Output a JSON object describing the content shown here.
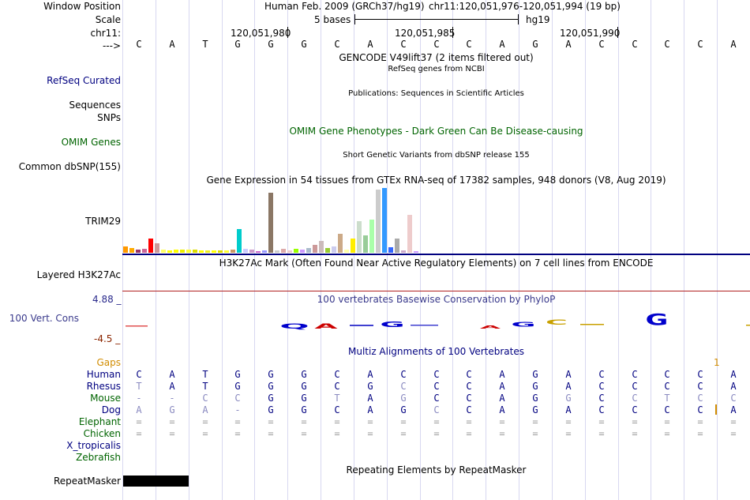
{
  "header": {
    "window_position_label": "Window Position",
    "assembly": "Human Feb. 2009 (GRCh37/hg19)",
    "position": "chr11:120,051,976-120,051,994 (19 bp)",
    "scale_label": "Scale",
    "scale_text": "5 bases",
    "scale_db": "hg19",
    "chrom_label": "chr11:",
    "ticks": [
      "120,051,980",
      "120,051,985",
      "120,051,990"
    ],
    "strand_label": "--->"
  },
  "sequence": [
    "C",
    "A",
    "T",
    "G",
    "G",
    "G",
    "C",
    "A",
    "C",
    "C",
    "C",
    "A",
    "G",
    "A",
    "C",
    "C",
    "C",
    "C",
    "A"
  ],
  "tracks": {
    "gencode": "GENCODE V49lift37 (2 items filtered out)",
    "refseq_label": "RefSeq Curated",
    "refseq_title": "RefSeq genes from NCBI",
    "pubs_label": "Sequences",
    "pubs_title": "Publications: Sequences in Scientific Articles",
    "snps_label": "SNPs",
    "omim_title": "OMIM Gene Phenotypes - Dark Green Can Be Disease-causing",
    "omim_label": "OMIM Genes",
    "dbsnp_title": "Short Genetic Variants from dbSNP release 155",
    "dbsnp_label": "Common dbSNP(155)",
    "gtex_title": "Gene Expression in 54 tissues from GTEx RNA-seq of 17382 samples, 948 donors (V8, Aug 2019)",
    "gtex_label": "TRIM29",
    "h3k_title": "H3K27Ac Mark (Often Found Near Active Regulatory Elements) on 7 cell lines from ENCODE",
    "h3k_label": "Layered H3K27Ac",
    "cons_title": "100 vertebrates Basewise Conservation by PhyloP",
    "cons_label": "100 Vert. Cons",
    "cons_max": "4.88 _",
    "cons_min": "-4.5 _",
    "multiz_title": "Multiz Alignments of 100 Vertebrates",
    "gaps_label": "Gaps",
    "gaps_value": "1",
    "rmsk_title": "Repeating Elements by RepeatMasker",
    "rmsk_label": "RepeatMasker"
  },
  "gtex_values": [
    8,
    6,
    4,
    5,
    18,
    12,
    4,
    3,
    4,
    4,
    4,
    4,
    3,
    3,
    3,
    3,
    3,
    4,
    30,
    5,
    4,
    2,
    3,
    76,
    3,
    5,
    3,
    5,
    4,
    6,
    10,
    15,
    6,
    8,
    24,
    4,
    18,
    40,
    22,
    42,
    80,
    82,
    7,
    18,
    3,
    48,
    2
  ],
  "gtex_colors": [
    "#ff9900",
    "#ffaa00",
    "#993366",
    "#cc6699",
    "#ff0000",
    "#cc9999",
    "#ffff66",
    "#ffff00",
    "#ffff00",
    "#eeee00",
    "#ffff33",
    "#dddd00",
    "#ffff00",
    "#eeee22",
    "#ffff00",
    "#dddd00",
    "#ffff33",
    "#cc9966",
    "#00cccc",
    "#ccccff",
    "#cc99cc",
    "#cc66cc",
    "#9999ff",
    "#8b7765",
    "#cccccc",
    "#ddaaaa",
    "#eecccc",
    "#99ff00",
    "#cc99ff",
    "#aabbcc",
    "#cc9999",
    "#ccbbbb",
    "#99cc33",
    "#ccccee",
    "#ccaa88",
    "#ffffaa",
    "#ffee00",
    "#ccddcc",
    "#99cc99",
    "#aaffaa",
    "#cccccc",
    "#3399ff",
    "#3366ff",
    "#aaaaaa",
    "#ccaacc",
    "#eecccc",
    "#cc99ff"
  ],
  "species": [
    {
      "name": "Human",
      "color": "#000080",
      "bases": [
        "C",
        "A",
        "T",
        "G",
        "G",
        "G",
        "C",
        "A",
        "C",
        "C",
        "C",
        "A",
        "G",
        "A",
        "C",
        "C",
        "C",
        "C",
        "A"
      ],
      "shades": "ddddddddddddddddddd"
    },
    {
      "name": "Rhesus",
      "color": "#000080",
      "bases": [
        "T",
        "A",
        "T",
        "G",
        "G",
        "G",
        "C",
        "G",
        "C",
        "C",
        "C",
        "A",
        "G",
        "A",
        "C",
        "C",
        "C",
        "C",
        "A"
      ],
      "shades": "ldddddddldddddddddd"
    },
    {
      "name": "Mouse",
      "color": "#006400",
      "bases": [
        "-",
        "-",
        "C",
        "C",
        "G",
        "G",
        "T",
        "A",
        "G",
        "C",
        "C",
        "A",
        "G",
        "G",
        "C",
        "C",
        "T",
        "C",
        "C"
      ],
      "shades": "llllddldlddddldllll"
    },
    {
      "name": "Dog",
      "color": "#000080",
      "bases": [
        "A",
        "G",
        "A",
        "-",
        "G",
        "G",
        "C",
        "A",
        "G",
        "C",
        "C",
        "A",
        "G",
        "A",
        "C",
        "C",
        "C",
        "C",
        "A"
      ],
      "shades": "lllldddddlddddddddd"
    },
    {
      "name": "Elephant",
      "color": "#006400",
      "bases": [
        "=",
        "=",
        "=",
        "=",
        "=",
        "=",
        "=",
        "=",
        "=",
        "=",
        "=",
        "=",
        "=",
        "=",
        "=",
        "=",
        "=",
        "=",
        "="
      ],
      "shades": "lllllllllllllllllll"
    },
    {
      "name": "Chicken",
      "color": "#006400",
      "bases": [
        "=",
        "=",
        "=",
        "=",
        "=",
        "=",
        "=",
        "=",
        "=",
        "=",
        "=",
        "=",
        "=",
        "=",
        "=",
        "=",
        "=",
        "=",
        "="
      ],
      "shades": "lllllllllllllllllll"
    },
    {
      "name": "X_tropicalis",
      "color": "#000080",
      "bases": [],
      "shades": ""
    },
    {
      "name": "Zebrafish",
      "color": "#006400",
      "bases": [],
      "shades": ""
    }
  ],
  "colors": {
    "label_blue": "#000080",
    "label_green": "#006400",
    "cons_label": "#3a3a8c",
    "cons_max": "#2a2a8c",
    "cons_min": "#8b2500",
    "gaps": "#d18c00",
    "grid": "#d8d8f0",
    "blue_line": "#000080",
    "red_line": "#b22222"
  }
}
